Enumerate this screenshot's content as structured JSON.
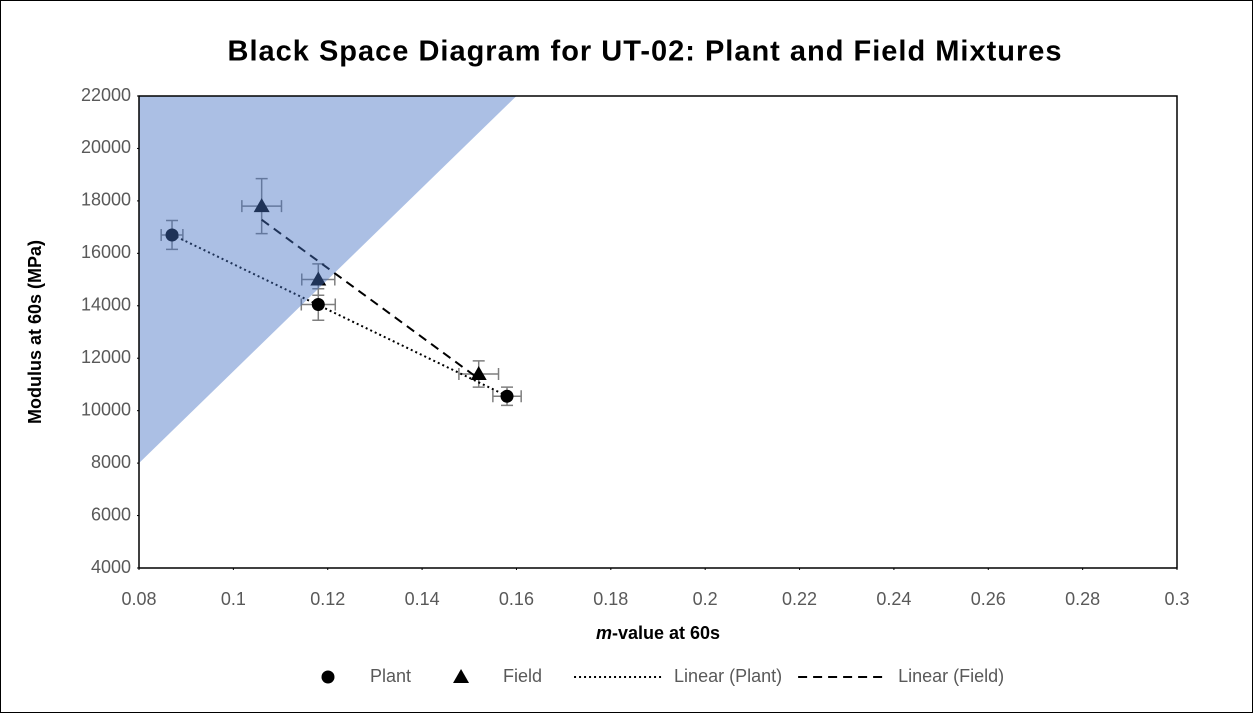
{
  "chart_data": {
    "type": "scatter",
    "title": "Black Space Diagram for UT-02: Plant and Field Mixtures",
    "xlabel": [
      "m",
      "-value at 60s"
    ],
    "ylabel": "Modulus at 60s (MPa)",
    "xlim": [
      0.08,
      0.3
    ],
    "ylim": [
      4000,
      22000
    ],
    "xticks": [
      0.08,
      0.1,
      0.12,
      0.14,
      0.16,
      0.18,
      0.2,
      0.22,
      0.24,
      0.26,
      0.28,
      0.3
    ],
    "yticks": [
      4000,
      6000,
      8000,
      10000,
      12000,
      14000,
      16000,
      18000,
      20000,
      22000
    ],
    "region": {
      "x": [
        0.08,
        0.16,
        0.08
      ],
      "y": [
        22000,
        22000,
        8000
      ],
      "color": "#4472c4"
    },
    "series": [
      {
        "name": "Plant",
        "marker": "circle",
        "color": "#000000",
        "x": [
          0.087,
          0.118,
          0.158
        ],
        "values": [
          16700,
          14050,
          10550
        ],
        "x_err": [
          0.0023,
          0.0036,
          0.003
        ],
        "y_err": [
          550,
          600,
          350
        ]
      },
      {
        "name": "Field",
        "marker": "triangle",
        "color": "#000000",
        "x": [
          0.106,
          0.118,
          0.152
        ],
        "values": [
          17800,
          15000,
          11400
        ],
        "x_err": [
          0.0042,
          0.0035,
          0.0042
        ],
        "y_err": [
          1050,
          600,
          500
        ]
      }
    ],
    "trendlines": [
      {
        "name": "Linear (Plant)",
        "series": 0,
        "dash": "2,3"
      },
      {
        "name": "Linear (Field)",
        "series": 1,
        "dash": "9,6"
      }
    ]
  }
}
